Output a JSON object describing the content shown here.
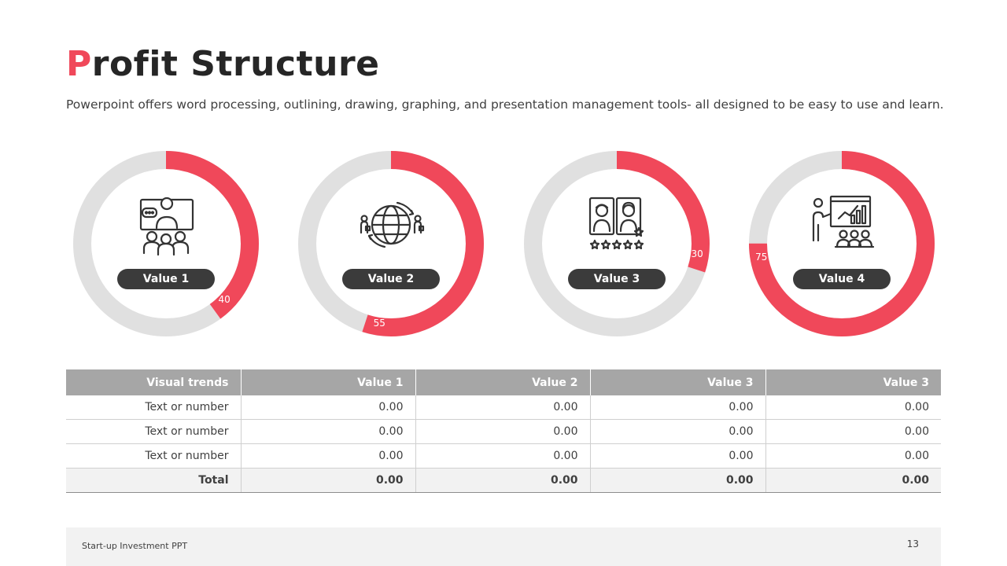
{
  "slide": {
    "title_first": "P",
    "title_rest": "rofit Structure",
    "subtitle": "Powerpoint offers word processing, outlining, drawing, graphing, and presentation management tools- all designed to be easy to use and learn."
  },
  "chart_data": [
    {
      "type": "pie",
      "label": "Value 1",
      "value": 40,
      "value_label": "40",
      "max": 100,
      "icon": "presenter-video-call-icon",
      "color": "#f0485a",
      "track_color": "#e0e0e0"
    },
    {
      "type": "pie",
      "label": "Value 2",
      "value": 55,
      "value_label": "55",
      "max": 100,
      "icon": "globe-business-people-icon",
      "color": "#f0485a",
      "track_color": "#e0e0e0"
    },
    {
      "type": "pie",
      "label": "Value 3",
      "value": 30,
      "value_label": "30",
      "max": 100,
      "icon": "profile-rating-icon",
      "color": "#f0485a",
      "track_color": "#e0e0e0"
    },
    {
      "type": "pie",
      "label": "Value 4",
      "value": 75,
      "value_label": "75",
      "max": 100,
      "icon": "presentation-audience-icon",
      "color": "#f0485a",
      "track_color": "#e0e0e0"
    }
  ],
  "table": {
    "headers": [
      "Visual trends",
      "Value 1",
      "Value 2",
      "Value 3",
      "Value 3"
    ],
    "rows": [
      [
        "Text or number",
        "0.00",
        "0.00",
        "0.00",
        "0.00"
      ],
      [
        "Text or number",
        "0.00",
        "0.00",
        "0.00",
        "0.00"
      ],
      [
        "Text or number",
        "0.00",
        "0.00",
        "0.00",
        "0.00"
      ]
    ],
    "total": [
      "Total",
      "0.00",
      "0.00",
      "0.00",
      "0.00"
    ]
  },
  "footer": {
    "text": "Start-up Investment PPT",
    "page": "13"
  }
}
